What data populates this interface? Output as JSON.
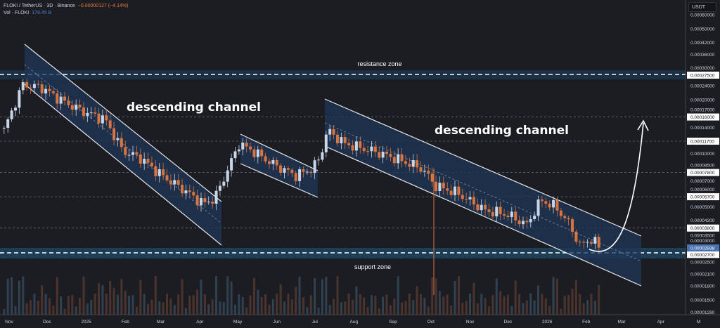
{
  "header": {
    "symbol": "FLOKI / TetherUS · 3D · Binance",
    "change": "−0.00000127 (−4.14%)",
    "volume_label": "Vol · FLOKI",
    "volume_value": "179.45 B"
  },
  "price_unit": "USDT",
  "colors": {
    "up": "#c9d6e8",
    "down": "#d8743f",
    "channel_fill": "#1f3558",
    "zone_fill": "#1e3a56",
    "background": "#1c1d23",
    "highlight": "#4a72b0"
  },
  "annotations": {
    "resistance": "resistance zone",
    "support": "support zone",
    "channel_left": "descending channel",
    "channel_right": "descending channel"
  },
  "chart_data": {
    "type": "candlestick",
    "timeframe": "3D",
    "y_scale": "log",
    "price_path": [
      [
        "2024-10-28",
        0.000135
      ],
      [
        "2024-11-05",
        0.000186
      ],
      [
        "2024-11-12",
        0.000244
      ],
      [
        "2024-11-27",
        0.000233
      ],
      [
        "2024-12-14",
        0.000195
      ],
      [
        "2024-12-31",
        0.00017
      ],
      [
        "2025-01-16",
        0.000155
      ],
      [
        "2025-01-30",
        0.000103
      ],
      [
        "2025-02-13",
        9.4e-05
      ],
      [
        "2025-03-02",
        7.5e-05
      ],
      [
        "2025-03-19",
        6.25e-05
      ],
      [
        "2025-04-04",
        5.2e-05
      ],
      [
        "2025-04-13",
        5.6e-05
      ],
      [
        "2025-04-21",
        7.5e-05
      ],
      [
        "2025-05-02",
        0.000113
      ],
      [
        "2025-05-13",
        0.000103
      ],
      [
        "2025-05-30",
        8.6e-05
      ],
      [
        "2025-06-16",
        7.5e-05
      ],
      [
        "2025-06-29",
        8.2e-05
      ],
      [
        "2025-07-05",
        9.4e-05
      ],
      [
        "2025-07-11",
        0.000135
      ],
      [
        "2025-07-25",
        0.000113
      ],
      [
        "2025-08-16",
        0.000103
      ],
      [
        "2025-09-02",
        9.4e-05
      ],
      [
        "2025-09-24",
        8.2e-05
      ],
      [
        "2025-10-05",
        6.54e-05
      ],
      [
        "2025-10-22",
        5.97e-05
      ],
      [
        "2025-11-13",
        4.76e-05
      ],
      [
        "2025-11-30",
        4.54e-05
      ],
      [
        "2025-12-16",
        3.97e-05
      ],
      [
        "2025-12-27",
        5.45e-05
      ],
      [
        "2026-01-08",
        4.98e-05
      ],
      [
        "2026-01-19",
        3.97e-05
      ],
      [
        "2026-01-27",
        3.02e-05
      ],
      [
        "2026-02-04",
        3.3e-05
      ],
      [
        "2026-02-13",
        2.938e-05
      ]
    ],
    "y_ticks": [
      "0.00060000",
      "0.00050000",
      "0.00042000",
      "0.00036000",
      "0.00030000",
      "0.00024000",
      "0.00020000",
      "0.00017000",
      "0.00014000",
      "0.00010000",
      "0.00008500",
      "0.00007000",
      "0.00006000",
      "0.00005000",
      "0.00004200",
      "0.00003500",
      "0.00003000",
      "0.00002500",
      "0.00002100",
      "0.00001800",
      "0.00001500",
      "0.00001280"
    ],
    "highlighted_levels": [
      "0.00027500",
      "0.00016000",
      "0.00011700",
      "0.00007800",
      "0.00005700",
      "0.00003800",
      "0.00002700"
    ],
    "last_price": "0.00002938",
    "x_ticks": [
      [
        "Nov",
        "2024-11-01"
      ],
      [
        "Dec",
        "2024-12-01"
      ],
      [
        "2025",
        "2025-01-01"
      ],
      [
        "Feb",
        "2025-02-01"
      ],
      [
        "Mar",
        "2025-03-01"
      ],
      [
        "Apr",
        "2025-04-01"
      ],
      [
        "May",
        "2025-05-01"
      ],
      [
        "Jun",
        "2025-06-01"
      ],
      [
        "Jul",
        "2025-07-01"
      ],
      [
        "Aug",
        "2025-08-01"
      ],
      [
        "Sep",
        "2025-09-01"
      ],
      [
        "Oct",
        "2025-10-01"
      ],
      [
        "Nov",
        "2025-11-01"
      ],
      [
        "Dec",
        "2025-12-01"
      ],
      [
        "2026",
        "2026-01-01"
      ],
      [
        "Feb",
        "2026-02-01"
      ],
      [
        "Mar",
        "2026-03-01"
      ],
      [
        "Apr",
        "2026-04-01"
      ],
      [
        "M",
        "2026-05-01"
      ]
    ]
  }
}
